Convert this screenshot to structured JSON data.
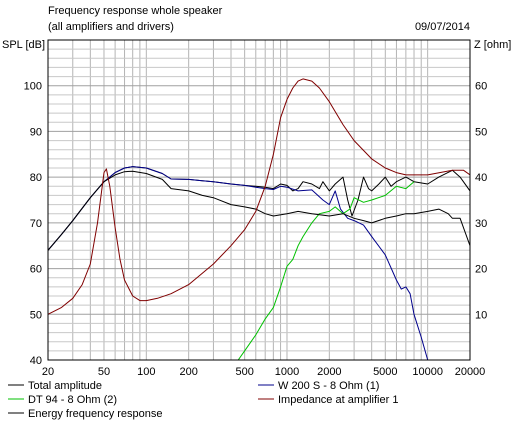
{
  "chart_data": {
    "type": "line",
    "title": "Frequency response whole speaker",
    "subtitle": "(all amplifiers and drivers)",
    "date": "09/07/2014",
    "xscale": "log",
    "xlim": [
      20,
      20000
    ],
    "x_ticks": [
      "20",
      "50",
      "100",
      "200",
      "500",
      "1000",
      "2000",
      "5000",
      "10000",
      "20000"
    ],
    "ylabel": "SPL [dB]",
    "ylim": [
      40,
      110
    ],
    "y_ticks": [
      "40",
      "50",
      "60",
      "70",
      "80",
      "90",
      "100"
    ],
    "y2label": "Z [ohm]",
    "y2lim": [
      10,
      70
    ],
    "y2_ticks": [
      "10",
      "20",
      "30",
      "40",
      "50",
      "60"
    ],
    "grid": true,
    "legend_position": "bottom",
    "series": [
      {
        "name": "Total amplitude",
        "color": "#000000",
        "axis": "left",
        "points": [
          [
            20,
            64
          ],
          [
            25,
            67.5
          ],
          [
            30,
            70.5
          ],
          [
            40,
            75.5
          ],
          [
            50,
            79
          ],
          [
            60,
            81
          ],
          [
            70,
            82
          ],
          [
            80,
            82.3
          ],
          [
            100,
            82
          ],
          [
            130,
            80.8
          ],
          [
            150,
            79.6
          ],
          [
            200,
            79.5
          ],
          [
            250,
            79.2
          ],
          [
            300,
            79
          ],
          [
            400,
            78.5
          ],
          [
            500,
            78.2
          ],
          [
            600,
            78
          ],
          [
            700,
            77.8
          ],
          [
            800,
            77.5
          ],
          [
            900,
            78.5
          ],
          [
            1000,
            78.2
          ],
          [
            1100,
            77
          ],
          [
            1200,
            77.5
          ],
          [
            1300,
            79
          ],
          [
            1500,
            78.5
          ],
          [
            1700,
            77.5
          ],
          [
            1800,
            79
          ],
          [
            2000,
            77
          ],
          [
            2200,
            78.5
          ],
          [
            2500,
            80
          ],
          [
            2700,
            75
          ],
          [
            2900,
            71.5
          ],
          [
            3200,
            75
          ],
          [
            3500,
            80
          ],
          [
            3800,
            77.5
          ],
          [
            4000,
            77
          ],
          [
            4500,
            78.5
          ],
          [
            5000,
            80
          ],
          [
            5500,
            78
          ],
          [
            6000,
            79
          ],
          [
            7000,
            80
          ],
          [
            8000,
            79
          ],
          [
            10000,
            78.5
          ],
          [
            12000,
            80
          ],
          [
            15000,
            81.5
          ],
          [
            17000,
            80
          ],
          [
            20000,
            77
          ]
        ]
      },
      {
        "name": "W 200 S - 8 Ohm (1)",
        "color": "#00008b",
        "axis": "left",
        "points": [
          [
            20,
            64
          ],
          [
            25,
            67.5
          ],
          [
            30,
            70.5
          ],
          [
            40,
            75.5
          ],
          [
            50,
            79
          ],
          [
            60,
            81
          ],
          [
            70,
            82
          ],
          [
            80,
            82.3
          ],
          [
            100,
            82
          ],
          [
            130,
            80.8
          ],
          [
            150,
            79.6
          ],
          [
            200,
            79.5
          ],
          [
            250,
            79.2
          ],
          [
            300,
            79
          ],
          [
            400,
            78.5
          ],
          [
            500,
            78.2
          ],
          [
            600,
            77.8
          ],
          [
            700,
            77.5
          ],
          [
            800,
            77.3
          ],
          [
            900,
            78
          ],
          [
            1000,
            77.8
          ],
          [
            1200,
            77
          ],
          [
            1500,
            77.2
          ],
          [
            1800,
            75
          ],
          [
            2000,
            74
          ],
          [
            2200,
            77
          ],
          [
            2400,
            73
          ],
          [
            2700,
            71
          ],
          [
            3000,
            70.5
          ],
          [
            3500,
            69.5
          ],
          [
            4000,
            67
          ],
          [
            5000,
            63
          ],
          [
            6000,
            57.5
          ],
          [
            6500,
            55.5
          ],
          [
            7000,
            56
          ],
          [
            7500,
            54.5
          ],
          [
            8000,
            50
          ],
          [
            9000,
            45
          ],
          [
            10000,
            40
          ],
          [
            20000,
            40
          ]
        ]
      },
      {
        "name": "DT 94 - 8 Ohm (2)",
        "color": "#00c000",
        "axis": "left",
        "points": [
          [
            20,
            40
          ],
          [
            450,
            40
          ],
          [
            500,
            42
          ],
          [
            600,
            45.5
          ],
          [
            700,
            49
          ],
          [
            800,
            51.5
          ],
          [
            900,
            56
          ],
          [
            1000,
            60.5
          ],
          [
            1100,
            62
          ],
          [
            1200,
            65
          ],
          [
            1300,
            67
          ],
          [
            1500,
            70
          ],
          [
            1700,
            72
          ],
          [
            2000,
            72.5
          ],
          [
            2200,
            73.5
          ],
          [
            2500,
            72
          ],
          [
            2800,
            73
          ],
          [
            3000,
            75.5
          ],
          [
            3500,
            74.5
          ],
          [
            4000,
            75
          ],
          [
            5000,
            76
          ],
          [
            6000,
            78
          ],
          [
            7000,
            77.5
          ],
          [
            8000,
            79
          ]
        ]
      },
      {
        "name": "Energy frequency response",
        "color": "#000000",
        "axis": "left",
        "points": [
          [
            20,
            64
          ],
          [
            25,
            67.5
          ],
          [
            30,
            70.5
          ],
          [
            40,
            75.5
          ],
          [
            50,
            79
          ],
          [
            60,
            80.5
          ],
          [
            70,
            81.2
          ],
          [
            80,
            81.3
          ],
          [
            100,
            80.8
          ],
          [
            130,
            79.5
          ],
          [
            150,
            77.5
          ],
          [
            200,
            77
          ],
          [
            250,
            76
          ],
          [
            300,
            75.5
          ],
          [
            400,
            74
          ],
          [
            500,
            73.5
          ],
          [
            600,
            73
          ],
          [
            700,
            72
          ],
          [
            800,
            71.5
          ],
          [
            1000,
            72
          ],
          [
            1200,
            72.5
          ],
          [
            1500,
            72
          ],
          [
            2000,
            71.5
          ],
          [
            2500,
            72
          ],
          [
            3000,
            71
          ],
          [
            3500,
            70.5
          ],
          [
            4000,
            70
          ],
          [
            5000,
            71
          ],
          [
            6000,
            71.5
          ],
          [
            7000,
            72
          ],
          [
            8000,
            72
          ],
          [
            10000,
            72.5
          ],
          [
            12000,
            73
          ],
          [
            14000,
            72
          ],
          [
            15000,
            71
          ],
          [
            17000,
            71
          ],
          [
            20000,
            65
          ]
        ]
      },
      {
        "name": "Impedance at amplifier 1",
        "color": "#800000",
        "axis": "right",
        "points": [
          [
            20,
            10
          ],
          [
            25,
            11.5
          ],
          [
            30,
            13.5
          ],
          [
            35,
            16.5
          ],
          [
            40,
            21
          ],
          [
            45,
            30
          ],
          [
            50,
            41
          ],
          [
            52,
            41.8
          ],
          [
            55,
            38
          ],
          [
            60,
            29
          ],
          [
            65,
            22
          ],
          [
            70,
            17.5
          ],
          [
            80,
            14
          ],
          [
            90,
            13
          ],
          [
            100,
            13
          ],
          [
            120,
            13.5
          ],
          [
            150,
            14.5
          ],
          [
            200,
            16.5
          ],
          [
            300,
            21
          ],
          [
            400,
            25
          ],
          [
            500,
            28.5
          ],
          [
            600,
            32.5
          ],
          [
            700,
            38
          ],
          [
            800,
            45
          ],
          [
            900,
            53
          ],
          [
            1000,
            57
          ],
          [
            1100,
            59.5
          ],
          [
            1200,
            61
          ],
          [
            1300,
            61.5
          ],
          [
            1500,
            61
          ],
          [
            1700,
            59.5
          ],
          [
            2000,
            56.5
          ],
          [
            2500,
            51.5
          ],
          [
            3000,
            48
          ],
          [
            4000,
            44
          ],
          [
            5000,
            42
          ],
          [
            6000,
            41
          ],
          [
            7000,
            40.5
          ],
          [
            8000,
            40.5
          ],
          [
            10000,
            40.5
          ],
          [
            15000,
            41.5
          ],
          [
            18000,
            41.5
          ],
          [
            20000,
            40.5
          ]
        ]
      }
    ],
    "legend": [
      {
        "label": "Total amplitude",
        "color": "#000000"
      },
      {
        "label": "W 200 S - 8 Ohm (1)",
        "color": "#00008b"
      },
      {
        "label": "DT 94 - 8 Ohm (2)",
        "color": "#00c000"
      },
      {
        "label": "Impedance at amplifier 1",
        "color": "#800000"
      },
      {
        "label": "Energy frequency response",
        "color": "#000000"
      }
    ]
  }
}
